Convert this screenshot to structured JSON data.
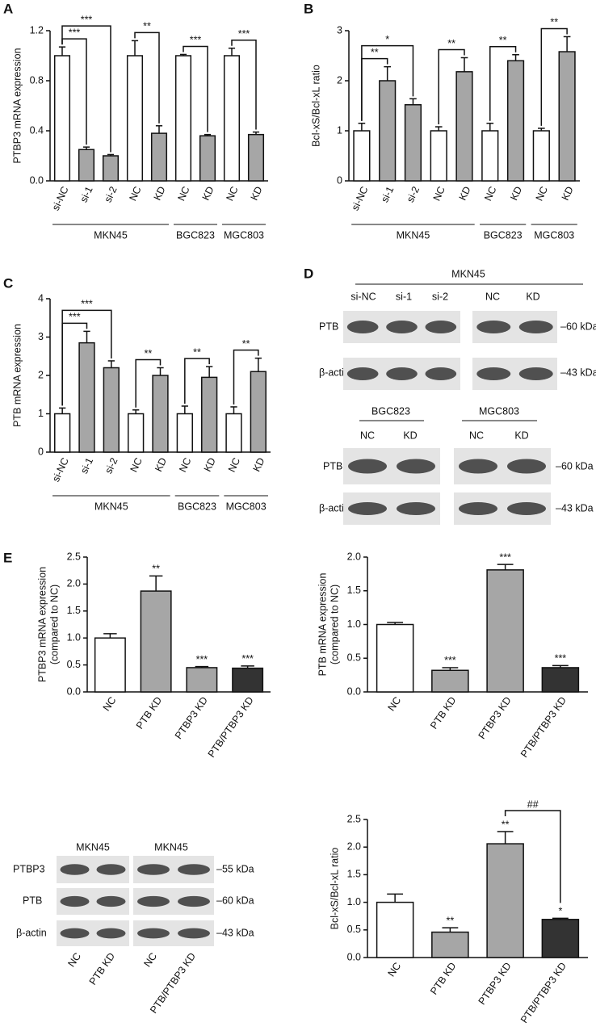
{
  "panel_labels": [
    "A",
    "B",
    "C",
    "D",
    "E"
  ],
  "chart_data": [
    {
      "type": "bar",
      "ylabel": [
        "PTBP3 mRNA expression"
      ],
      "categories": [
        "si-NC",
        "si-1",
        "si-2",
        "NC",
        "KD",
        "NC",
        "KD",
        "NC",
        "KD"
      ],
      "values": [
        1.0,
        0.25,
        0.2,
        1.0,
        0.38,
        1.0,
        0.36,
        1.0,
        0.37
      ],
      "error": [
        0.07,
        0.02,
        0.01,
        0.12,
        0.06,
        0.01,
        0.01,
        0.06,
        0.02
      ],
      "colors": [
        "#ffffff",
        "#a6a6a6",
        "#a6a6a6",
        "#ffffff",
        "#a6a6a6",
        "#ffffff",
        "#a6a6a6",
        "#ffffff",
        "#a6a6a6"
      ],
      "ylim": [
        0,
        1.2
      ],
      "yticks": [
        {
          "value": 0,
          "label": "0.0"
        },
        0.4,
        0.8,
        1.2
      ],
      "brackets": [
        {
          "label": "***",
          "bars": [
            0,
            1
          ]
        },
        {
          "label": "***",
          "bars": [
            0,
            2
          ]
        },
        {
          "label": "**",
          "bars": [
            3,
            4
          ]
        },
        {
          "label": "***",
          "bars": [
            5,
            6
          ]
        },
        {
          "label": "***",
          "bars": [
            7,
            8
          ]
        }
      ],
      "groups": [
        {
          "label": "MKN45",
          "bars": [
            0,
            4
          ]
        },
        {
          "label": "BGC823",
          "bars": [
            5,
            6
          ]
        },
        {
          "label": "MGC803",
          "bars": [
            7,
            8
          ]
        }
      ]
    },
    {
      "type": "bar",
      "ylabel": [
        "Bcl-xS/Bcl-xL ratio"
      ],
      "categories": [
        "si-NC",
        "si-1",
        "si-2",
        "NC",
        "KD",
        "NC",
        "KD",
        "NC",
        "KD"
      ],
      "values": [
        1.0,
        2.0,
        1.52,
        1.0,
        2.18,
        1.0,
        2.4,
        1.0,
        2.58
      ],
      "error": [
        0.15,
        0.28,
        0.12,
        0.08,
        0.28,
        0.15,
        0.12,
        0.05,
        0.3
      ],
      "colors": [
        "#ffffff",
        "#a6a6a6",
        "#a6a6a6",
        "#ffffff",
        "#a6a6a6",
        "#ffffff",
        "#a6a6a6",
        "#ffffff",
        "#a6a6a6"
      ],
      "ylim": [
        0,
        3
      ],
      "yticks": [
        0,
        1,
        2,
        3
      ],
      "brackets": [
        {
          "label": "**",
          "bars": [
            0,
            1
          ]
        },
        {
          "label": "*",
          "bars": [
            0,
            2
          ]
        },
        {
          "label": "**",
          "bars": [
            3,
            4
          ]
        },
        {
          "label": "**",
          "bars": [
            5,
            6
          ]
        },
        {
          "label": "**",
          "bars": [
            7,
            8
          ]
        }
      ],
      "groups": [
        {
          "label": "MKN45",
          "bars": [
            0,
            4
          ]
        },
        {
          "label": "BGC823",
          "bars": [
            5,
            6
          ]
        },
        {
          "label": "MGC803",
          "bars": [
            7,
            8
          ]
        }
      ]
    },
    {
      "type": "bar",
      "ylabel": [
        "PTB mRNA expression"
      ],
      "categories": [
        "si-NC",
        "si-1",
        "si-2",
        "NC",
        "KD",
        "NC",
        "KD",
        "NC",
        "KD"
      ],
      "values": [
        1.0,
        2.85,
        2.2,
        1.0,
        2.0,
        1.0,
        1.95,
        1.0,
        2.1
      ],
      "error": [
        0.15,
        0.3,
        0.18,
        0.1,
        0.2,
        0.2,
        0.28,
        0.18,
        0.35
      ],
      "colors": [
        "#ffffff",
        "#a6a6a6",
        "#a6a6a6",
        "#ffffff",
        "#a6a6a6",
        "#ffffff",
        "#a6a6a6",
        "#ffffff",
        "#a6a6a6"
      ],
      "ylim": [
        0,
        4
      ],
      "yticks": [
        0,
        1,
        2,
        3,
        4
      ],
      "brackets": [
        {
          "label": "***",
          "bars": [
            0,
            1
          ]
        },
        {
          "label": "***",
          "bars": [
            0,
            2
          ]
        },
        {
          "label": "**",
          "bars": [
            3,
            4
          ]
        },
        {
          "label": "**",
          "bars": [
            5,
            6
          ]
        },
        {
          "label": "**",
          "bars": [
            7,
            8
          ]
        }
      ],
      "groups": [
        {
          "label": "MKN45",
          "bars": [
            0,
            4
          ]
        },
        {
          "label": "BGC823",
          "bars": [
            5,
            6
          ]
        },
        {
          "label": "MGC803",
          "bars": [
            7,
            8
          ]
        }
      ]
    },
    {
      "type": "bar",
      "ylabel": [
        "PTBP3 mRNA expression",
        "(compared to NC)"
      ],
      "categories": [
        "NC",
        "PTB KD",
        "PTBP3 KD",
        "PTB/PTBP3 KD"
      ],
      "values": [
        1.0,
        1.87,
        0.45,
        0.44
      ],
      "error": [
        0.08,
        0.28,
        0.02,
        0.04
      ],
      "significance": [
        null,
        "**",
        "***",
        "***"
      ],
      "colors": [
        "#ffffff",
        "#a6a6a6",
        "#a6a6a6",
        "#333333"
      ],
      "ylim": [
        0,
        2.5
      ],
      "yticks": [
        {
          "value": 0,
          "label": "0.0"
        },
        0.5,
        {
          "value": 1,
          "label": "1.0"
        },
        1.5,
        {
          "value": 2,
          "label": "2.0"
        },
        2.5
      ]
    },
    {
      "type": "bar",
      "ylabel": [
        "PTB mRNA expression",
        "(compared to NC)"
      ],
      "categories": [
        "NC",
        "PTB KD",
        "PTBP3 KD",
        "PTB/PTBP3 KD"
      ],
      "values": [
        1.0,
        0.32,
        1.81,
        0.36
      ],
      "error": [
        0.03,
        0.04,
        0.08,
        0.03
      ],
      "significance": [
        null,
        "***",
        "***",
        "***"
      ],
      "colors": [
        "#ffffff",
        "#a6a6a6",
        "#a6a6a6",
        "#333333"
      ],
      "ylim": [
        0,
        2
      ],
      "yticks": [
        {
          "value": 0,
          "label": "0.0"
        },
        0.5,
        {
          "value": 1,
          "label": "1.0"
        },
        1.5,
        {
          "value": 2,
          "label": "2.0"
        }
      ]
    },
    {
      "type": "bar",
      "ylabel": [
        "Bcl-xS/Bcl-xL ratio"
      ],
      "categories": [
        "NC",
        "PTB KD",
        "PTBP3 KD",
        "PTB/PTBP3 KD"
      ],
      "values": [
        1.0,
        0.46,
        2.06,
        0.69
      ],
      "error": [
        0.15,
        0.08,
        0.22,
        0.02
      ],
      "significance": [
        null,
        "**",
        "**",
        "*"
      ],
      "colors": [
        "#ffffff",
        "#a6a6a6",
        "#a6a6a6",
        "#333333"
      ],
      "ylim": [
        0,
        2.5
      ],
      "yticks": [
        {
          "value": 0,
          "label": "0.0"
        },
        0.5,
        {
          "value": 1,
          "label": "1.0"
        },
        1.5,
        {
          "value": 2,
          "label": "2.0"
        },
        2.5
      ],
      "brackets": [
        {
          "label": "##",
          "bars": [
            2,
            3
          ]
        }
      ]
    }
  ],
  "blot_D": {
    "top": {
      "group": "MKN45",
      "lanes": [
        "si-NC",
        "si-1",
        "si-2",
        "NC",
        "KD"
      ],
      "rows": [
        "PTB",
        "β-actin"
      ],
      "markers": [
        "–60 kDa",
        "–43 kDa"
      ]
    },
    "bottom": {
      "groups": [
        "BGC823",
        "MGC803"
      ],
      "lanes": [
        "NC",
        "KD",
        "NC",
        "KD"
      ],
      "rows": [
        "PTB",
        "β-actin"
      ],
      "markers": [
        "–60 kDa",
        "–43 kDa"
      ]
    }
  },
  "blot_E": {
    "groups": [
      "MKN45",
      "MKN45"
    ],
    "rows": [
      "PTBP3",
      "PTB",
      "β-actin"
    ],
    "markers": [
      "–55 kDa",
      "–60 kDa",
      "–43 kDa"
    ],
    "lanes": [
      "NC",
      "PTB KD",
      "NC",
      "PTB/PTBP3 KD"
    ]
  }
}
